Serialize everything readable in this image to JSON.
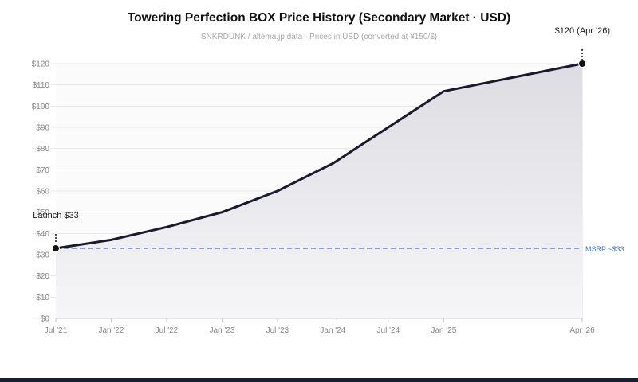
{
  "chart_data": {
    "type": "area",
    "title": "Towering Perfection BOX Price History (Secondary Market · USD)",
    "subtitle": "SNKRDUNK / altema.jp data · Prices in USD (converted at ¥150/$)",
    "xlabel": "",
    "ylabel": "",
    "x": [
      "2021-07",
      "2022-01",
      "2022-07",
      "2023-01",
      "2023-07",
      "2024-01",
      "2024-07",
      "2025-01",
      "2026-04"
    ],
    "x_tick_labels": [
      "Jul '21",
      "Jan '22",
      "Jul '22",
      "Jan '23",
      "Jul '23",
      "Jan '24",
      "Jul '24",
      "Jan '25",
      "Apr '26"
    ],
    "series": [
      {
        "values": [
          33,
          37,
          43,
          50,
          60,
          73,
          90,
          107,
          120
        ],
        "color": "#1a1a2e"
      }
    ],
    "ylim": [
      0,
      120
    ],
    "y_ticks": [
      0,
      10,
      20,
      30,
      40,
      50,
      60,
      70,
      80,
      90,
      100,
      110,
      120
    ],
    "y_tick_format": "$",
    "reference_line": {
      "value": 33,
      "label": "MSRP ~$33",
      "color": "#4a72b8",
      "style": "dashed"
    },
    "annotations": [
      {
        "label": "Launch $33",
        "point": "first"
      },
      {
        "label": "$120 (Apr '26)",
        "point": "last"
      }
    ],
    "grid": true,
    "legend": "none"
  },
  "colors": {
    "line": "#1a1a2e",
    "area_top": "#dcdce2",
    "area_bottom": "#f6f6f8",
    "grid": "#e8e8ec",
    "reference": "#4a72b8"
  }
}
